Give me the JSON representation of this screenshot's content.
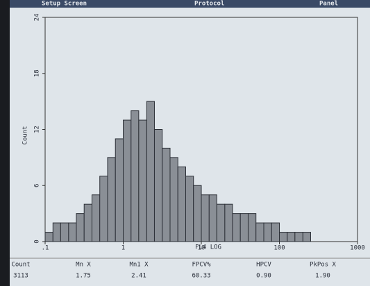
{
  "menu": [
    "Setup Screen",
    "Protocol",
    "Panel"
  ],
  "chart_data": {
    "type": "histogram",
    "xlabel": "FL4 LOG",
    "ylabel": "Count",
    "xscale": "log",
    "bins": [
      0.1,
      0.126,
      0.158,
      0.2,
      0.251,
      0.316,
      0.398,
      0.501,
      0.631,
      0.794,
      1,
      1.26,
      1.58,
      2,
      2.51,
      3.16,
      3.98,
      5.01,
      6.31,
      7.94,
      10,
      12.6,
      15.8,
      20,
      25.1,
      31.6,
      39.8,
      50.1,
      63.1,
      79.4,
      100,
      126,
      158,
      200,
      251
    ],
    "values": [
      1,
      2,
      2,
      2,
      3,
      4,
      5,
      7,
      9,
      11,
      13,
      14,
      13,
      15,
      12,
      10,
      9,
      8,
      7,
      6,
      5,
      5,
      4,
      4,
      3,
      3,
      3,
      2,
      2,
      2,
      1,
      1,
      1,
      1
    ],
    "color": "#8a8f96",
    "xlim": [
      0.1,
      1000
    ],
    "xticks": [
      {
        "value": 0.1,
        "label": ".1"
      },
      1,
      10,
      100,
      1000
    ],
    "ylim": [
      0,
      24
    ],
    "yticks": [
      0,
      6,
      12,
      18,
      24
    ]
  },
  "stats": {
    "headers": [
      "Count",
      "Mn X",
      "Mn1 X",
      "FPCV%",
      "HPCV",
      "PkPos X"
    ],
    "values": [
      "3113",
      "1.75",
      "2.41",
      "60.33",
      "0.90",
      "1.90"
    ]
  }
}
